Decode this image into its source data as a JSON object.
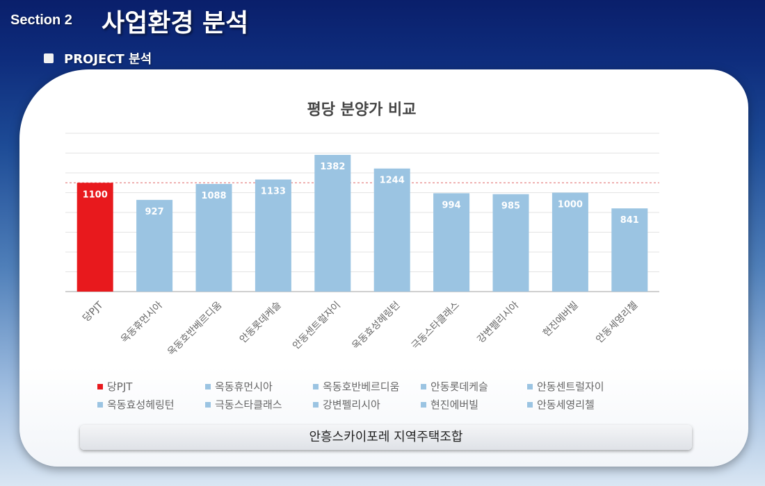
{
  "header": {
    "section_label": "Section 2",
    "section_title": "사업환경 분석",
    "subtitle": "PROJECT 분석"
  },
  "footer": {
    "text": "안흥스카이포레 지역주택조합"
  },
  "colors": {
    "highlight_bar": "#e8191d",
    "comparison_bar": "#9bc4e2",
    "reference_line": "#e06666"
  },
  "chart_data": {
    "type": "bar",
    "title": "평당 분양가 비교",
    "categories": [
      "당PJT",
      "옥동휴먼시아",
      "옥동호반베르디움",
      "안동롯데케슬",
      "안동센트럴자이",
      "옥동효성헤링턴",
      "극동스타클래스",
      "강변펠리시아",
      "현진에버빌",
      "안동세영리첼"
    ],
    "values": [
      1100,
      927,
      1088,
      1133,
      1382,
      1244,
      994,
      985,
      1000,
      841
    ],
    "highlight_index": 0,
    "reference_line_value": 1100,
    "ylim": [
      0,
      1600
    ],
    "grid": true,
    "legend_position": "bottom",
    "xlabel": "",
    "ylabel": ""
  }
}
